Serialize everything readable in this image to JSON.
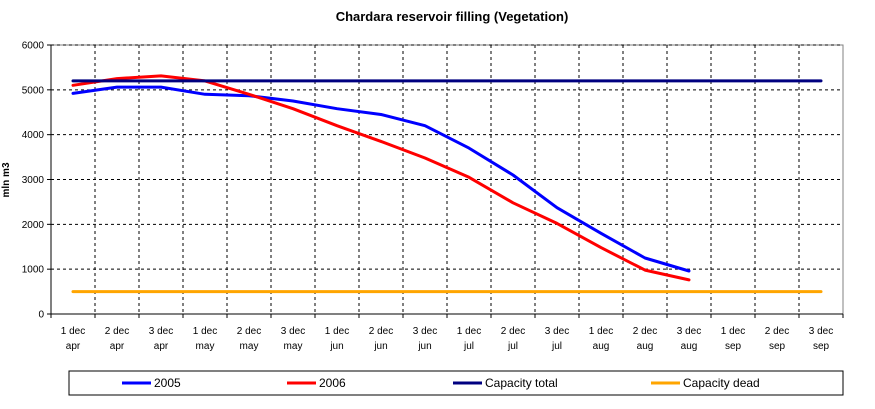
{
  "chart_data": {
    "type": "line",
    "title": "Chardara reservoir filling  (Vegetation)",
    "xlabel": "",
    "ylabel": "mln m3",
    "ylim": [
      0,
      6000
    ],
    "yticks": [
      0,
      1000,
      2000,
      3000,
      4000,
      5000,
      6000
    ],
    "grid": true,
    "legend_position": "bottom",
    "categories": [
      [
        "1 dec",
        "apr"
      ],
      [
        "2 dec",
        "apr"
      ],
      [
        "3 dec",
        "apr"
      ],
      [
        "1 dec",
        "may"
      ],
      [
        "2 dec",
        "may"
      ],
      [
        "3 dec",
        "may"
      ],
      [
        "1 dec",
        "jun"
      ],
      [
        "2 dec",
        "jun"
      ],
      [
        "3 dec",
        "jun"
      ],
      [
        "1 dec",
        "jul"
      ],
      [
        "2 dec",
        "jul"
      ],
      [
        "3 dec",
        "jul"
      ],
      [
        "1 dec",
        "aug"
      ],
      [
        "2 dec",
        "aug"
      ],
      [
        "3 dec",
        "aug"
      ],
      [
        "1 dec",
        "sep"
      ],
      [
        "2 dec",
        "sep"
      ],
      [
        "3 dec",
        "sep"
      ]
    ],
    "series": [
      {
        "name": "2005",
        "color": "#0000ff",
        "values": [
          4920,
          5060,
          5060,
          4900,
          4870,
          4750,
          4580,
          4450,
          4200,
          3700,
          3100,
          2370,
          1800,
          1250,
          960,
          null,
          null,
          null
        ]
      },
      {
        "name": "2006",
        "color": "#ff0000",
        "values": [
          5100,
          5250,
          5310,
          5200,
          4900,
          4580,
          4200,
          3850,
          3480,
          3050,
          2480,
          2020,
          1480,
          980,
          760,
          null,
          null,
          null
        ]
      },
      {
        "name": "Capacity total",
        "color": "#000080",
        "values": [
          5200,
          5200,
          5200,
          5200,
          5200,
          5200,
          5200,
          5200,
          5200,
          5200,
          5200,
          5200,
          5200,
          5200,
          5200,
          5200,
          5200,
          5200
        ]
      },
      {
        "name": "Capacity dead",
        "color": "#ffa500",
        "values": [
          500,
          500,
          500,
          500,
          500,
          500,
          500,
          500,
          500,
          500,
          500,
          500,
          500,
          500,
          500,
          500,
          500,
          500
        ]
      }
    ]
  }
}
